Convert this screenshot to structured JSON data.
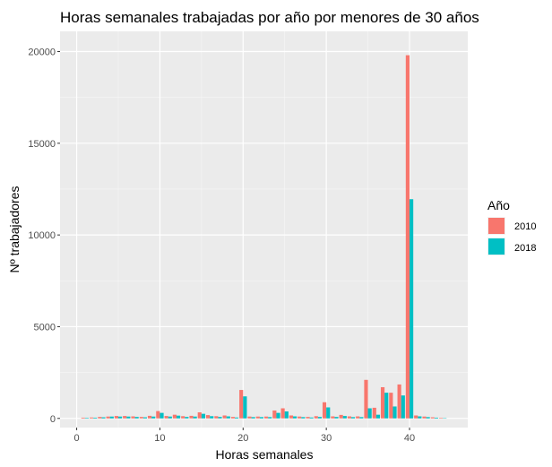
{
  "chart_data": {
    "type": "bar",
    "title": "Horas semanales trabajadas por año por menores de 30 años",
    "xlabel": "Horas semanales",
    "ylabel": "Nº trabajadores",
    "xlim": [
      -2,
      47
    ],
    "ylim": [
      -500,
      21100
    ],
    "x_ticks": [
      0,
      10,
      20,
      30,
      40
    ],
    "y_ticks": [
      0,
      5000,
      10000,
      15000,
      20000
    ],
    "grid": true,
    "legend": {
      "title": "Año",
      "position": "right"
    },
    "x": [
      1,
      2,
      3,
      4,
      5,
      6,
      7,
      8,
      9,
      10,
      11,
      12,
      13,
      14,
      15,
      16,
      17,
      18,
      19,
      20,
      21,
      22,
      23,
      24,
      25,
      26,
      27,
      28,
      29,
      30,
      31,
      32,
      33,
      34,
      35,
      36,
      37,
      38,
      39,
      40,
      41,
      42,
      43,
      44
    ],
    "series": [
      {
        "name": "2010",
        "color": "#F8766D",
        "values": [
          40,
          50,
          80,
          100,
          130,
          130,
          110,
          80,
          140,
          400,
          130,
          200,
          120,
          140,
          330,
          180,
          120,
          160,
          80,
          1550,
          100,
          100,
          100,
          430,
          550,
          160,
          100,
          80,
          120,
          880,
          110,
          190,
          110,
          110,
          2100,
          580,
          1700,
          1400,
          1850,
          19800,
          160,
          100,
          60,
          30
        ]
      },
      {
        "name": "2018",
        "color": "#00BFC4",
        "values": [
          30,
          40,
          60,
          100,
          100,
          100,
          80,
          60,
          100,
          300,
          100,
          150,
          80,
          100,
          250,
          120,
          80,
          110,
          50,
          1200,
          70,
          70,
          70,
          300,
          380,
          110,
          70,
          50,
          80,
          600,
          80,
          130,
          70,
          70,
          550,
          200,
          1400,
          650,
          1250,
          11950,
          110,
          70,
          40,
          20
        ]
      }
    ]
  }
}
